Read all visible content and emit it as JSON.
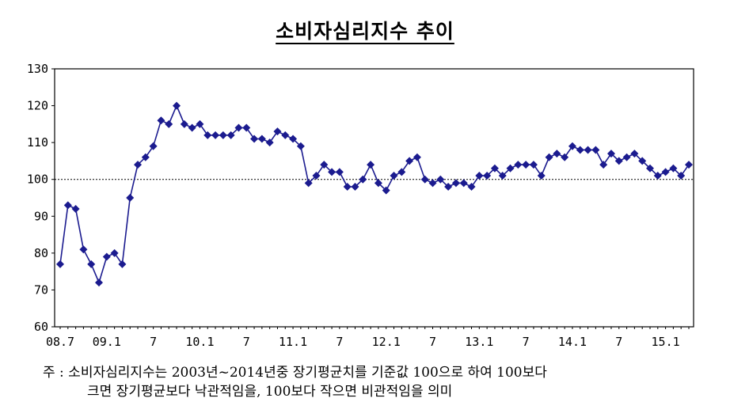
{
  "chart_data": {
    "type": "line",
    "title": "소비자심리지수 추이",
    "xlabel": "",
    "ylabel": "",
    "ylim": [
      60,
      130
    ],
    "y_ticks": [
      60,
      70,
      80,
      90,
      100,
      110,
      120,
      130
    ],
    "reference_line": 100,
    "grid": false,
    "x_tick_labels": [
      {
        "i": 0,
        "label": "08.7"
      },
      {
        "i": 6,
        "label": "09.1"
      },
      {
        "i": 12,
        "label": "7"
      },
      {
        "i": 18,
        "label": "10.1"
      },
      {
        "i": 24,
        "label": "7"
      },
      {
        "i": 30,
        "label": "11.1"
      },
      {
        "i": 36,
        "label": "7"
      },
      {
        "i": 42,
        "label": "12.1"
      },
      {
        "i": 48,
        "label": "7"
      },
      {
        "i": 54,
        "label": "13.1"
      },
      {
        "i": 60,
        "label": "7"
      },
      {
        "i": 66,
        "label": "14.1"
      },
      {
        "i": 72,
        "label": "7"
      },
      {
        "i": 78,
        "label": "15.1"
      }
    ],
    "series": [
      {
        "values": [
          77,
          93,
          92,
          81,
          77,
          72,
          79,
          80,
          77,
          95,
          104,
          106,
          109,
          116,
          115,
          120,
          115,
          114,
          115,
          112,
          112,
          112,
          112,
          114,
          114,
          111,
          111,
          110,
          113,
          112,
          111,
          109,
          99,
          101,
          104,
          102,
          102,
          98,
          98,
          100,
          104,
          99,
          97,
          101,
          102,
          105,
          106,
          100,
          99,
          100,
          98,
          99,
          99,
          98,
          101,
          101,
          103,
          101,
          103,
          104,
          104,
          104,
          101,
          106,
          107,
          106,
          109,
          108,
          108,
          108,
          104,
          107,
          105,
          106,
          107,
          105,
          103,
          101,
          102,
          103,
          101,
          104
        ]
      }
    ]
  },
  "colors": {
    "series_line": "#1b1b8f",
    "marker": "#1b1b8f",
    "axis": "#000000"
  },
  "note": {
    "line1": "주 : 소비자심리지수는 2003년~2014년중 장기평균치를 기준값 100으로 하여 100보다",
    "line2": "크면 장기평균보다 낙관적임을, 100보다 작으면 비관적임을 의미"
  }
}
